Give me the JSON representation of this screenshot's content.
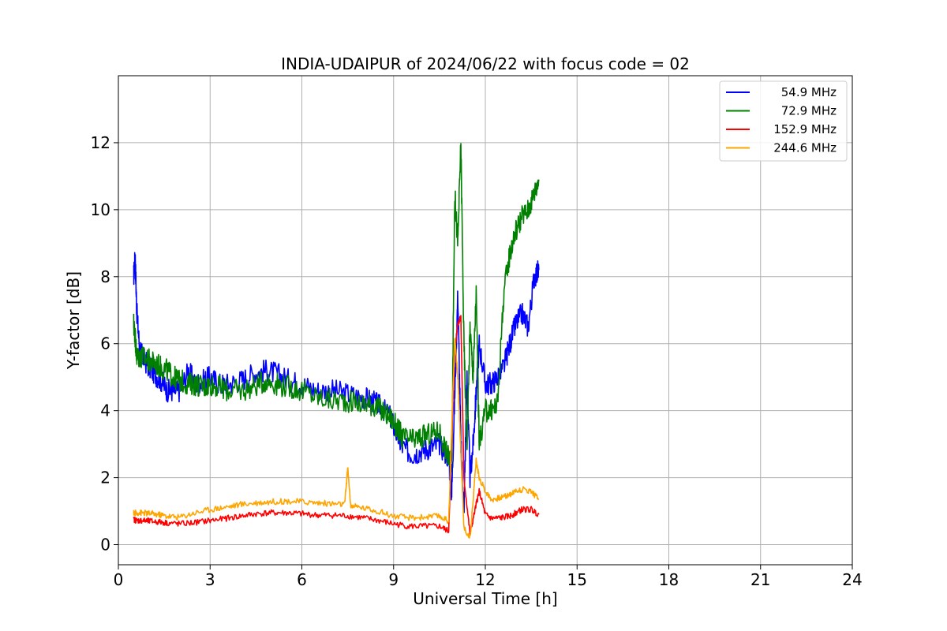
{
  "chart_data": {
    "type": "line",
    "title": "INDIA-UDAIPUR of 2024/06/22 with focus code = 02",
    "xlabel": "Universal Time [h]",
    "ylabel": "Y-factor [dB]",
    "xlim": [
      0,
      24
    ],
    "ylim": [
      -0.6,
      14
    ],
    "xticks": [
      0,
      3,
      6,
      9,
      12,
      15,
      18,
      21,
      24
    ],
    "xtick_labels": [
      "0",
      "3",
      "6",
      "9",
      "12",
      "15",
      "18",
      "21",
      "24"
    ],
    "yticks": [
      0,
      2,
      4,
      6,
      8,
      10,
      12
    ],
    "ytick_labels": [
      "0",
      "2",
      "4",
      "6",
      "8",
      "10",
      "12"
    ],
    "grid": true,
    "legend_position": "top-right",
    "series": [
      {
        "name": "54.9 MHz",
        "color": "#0000ff",
        "x": [
          0.5,
          0.55,
          0.6,
          0.7,
          0.8,
          1.0,
          1.2,
          1.4,
          1.6,
          1.8,
          2.0,
          2.3,
          2.5,
          2.8,
          3.0,
          3.3,
          3.6,
          4.0,
          4.4,
          4.8,
          5.2,
          5.6,
          6.0,
          6.5,
          7.0,
          7.5,
          8.0,
          8.3,
          8.6,
          8.9,
          9.1,
          9.3,
          9.6,
          9.9,
          10.2,
          10.5,
          10.8,
          10.9,
          11.0,
          11.1,
          11.2,
          11.3,
          11.4,
          11.5,
          11.6,
          11.7,
          11.8,
          12.0,
          12.2,
          12.4,
          12.6,
          12.8,
          13.0,
          13.2,
          13.4,
          13.6,
          13.75
        ],
        "y": [
          8.0,
          8.6,
          7.0,
          5.8,
          5.6,
          5.3,
          5.1,
          4.9,
          4.6,
          4.6,
          4.6,
          5.2,
          4.8,
          4.9,
          5.0,
          4.8,
          4.8,
          4.9,
          5.1,
          5.2,
          5.1,
          4.9,
          4.8,
          4.6,
          4.6,
          4.5,
          4.4,
          4.3,
          4.1,
          3.8,
          3.3,
          2.9,
          2.7,
          2.8,
          2.9,
          3.0,
          2.6,
          1.5,
          4.5,
          7.5,
          3.0,
          1.0,
          5.0,
          2.0,
          3.0,
          4.5,
          6.0,
          4.8,
          4.8,
          5.0,
          5.3,
          6.0,
          6.6,
          6.9,
          6.5,
          8.0,
          8.2
        ]
      },
      {
        "name": "72.9 MHz",
        "color": "#008000",
        "x": [
          0.5,
          0.55,
          0.6,
          0.7,
          0.8,
          1.0,
          1.2,
          1.4,
          1.6,
          1.8,
          2.0,
          2.3,
          2.5,
          2.8,
          3.0,
          3.3,
          3.6,
          4.0,
          4.4,
          4.8,
          5.2,
          5.6,
          6.0,
          6.5,
          7.0,
          7.5,
          8.0,
          8.3,
          8.6,
          8.9,
          9.1,
          9.3,
          9.6,
          9.9,
          10.2,
          10.5,
          10.8,
          10.9,
          11.0,
          11.1,
          11.2,
          11.3,
          11.4,
          11.5,
          11.6,
          11.7,
          11.8,
          12.0,
          12.2,
          12.4,
          12.6,
          12.8,
          13.0,
          13.2,
          13.4,
          13.6,
          13.75
        ],
        "y": [
          6.6,
          6.2,
          5.6,
          5.6,
          5.6,
          5.5,
          5.4,
          5.3,
          5.2,
          5.0,
          4.9,
          4.8,
          4.8,
          4.7,
          4.8,
          4.7,
          4.6,
          4.6,
          4.7,
          4.9,
          4.8,
          4.7,
          4.6,
          4.4,
          4.3,
          4.3,
          4.2,
          4.2,
          4.0,
          3.8,
          3.5,
          3.2,
          3.1,
          3.2,
          3.3,
          3.4,
          2.6,
          2.4,
          10.5,
          9.0,
          12.0,
          6.0,
          3.0,
          6.5,
          5.0,
          7.5,
          3.0,
          4.0,
          4.0,
          4.2,
          7.5,
          8.7,
          9.4,
          9.8,
          10.0,
          10.5,
          10.9
        ]
      },
      {
        "name": "152.9 MHz",
        "color": "#ff0000",
        "x": [
          0.5,
          0.6,
          0.8,
          1.0,
          1.3,
          1.6,
          2.0,
          2.5,
          3.0,
          3.5,
          4.0,
          4.5,
          5.0,
          5.5,
          6.0,
          6.5,
          7.0,
          7.5,
          8.0,
          8.5,
          9.0,
          9.5,
          10.0,
          10.5,
          10.8,
          11.0,
          11.1,
          11.2,
          11.3,
          11.5,
          11.7,
          11.8,
          12.0,
          12.2,
          12.5,
          12.8,
          13.0,
          13.2,
          13.5,
          13.75
        ],
        "y": [
          0.75,
          0.72,
          0.72,
          0.7,
          0.68,
          0.65,
          0.62,
          0.66,
          0.72,
          0.78,
          0.85,
          0.92,
          0.95,
          0.95,
          0.92,
          0.88,
          0.88,
          0.86,
          0.8,
          0.72,
          0.62,
          0.55,
          0.55,
          0.55,
          0.4,
          5.8,
          6.6,
          6.8,
          2.0,
          0.3,
          1.2,
          1.6,
          0.9,
          0.78,
          0.8,
          0.85,
          0.95,
          1.05,
          1.05,
          0.9
        ]
      },
      {
        "name": "244.6 MHz",
        "color": "#ffa500",
        "x": [
          0.5,
          0.6,
          0.8,
          1.0,
          1.3,
          1.6,
          2.0,
          2.5,
          3.0,
          3.5,
          4.0,
          4.5,
          5.0,
          5.5,
          6.0,
          6.5,
          7.0,
          7.4,
          7.5,
          7.6,
          8.0,
          8.5,
          9.0,
          9.5,
          10.0,
          10.5,
          10.8,
          11.0,
          11.1,
          11.2,
          11.3,
          11.5,
          11.7,
          11.8,
          12.0,
          12.2,
          12.5,
          12.8,
          13.0,
          13.2,
          13.5,
          13.75
        ],
        "y": [
          0.95,
          0.95,
          0.95,
          0.93,
          0.9,
          0.85,
          0.82,
          0.95,
          1.05,
          1.12,
          1.2,
          1.25,
          1.28,
          1.3,
          1.28,
          1.25,
          1.22,
          1.2,
          2.3,
          1.15,
          1.1,
          1.0,
          0.85,
          0.8,
          0.82,
          0.85,
          0.7,
          6.2,
          5.0,
          2.8,
          0.5,
          0.2,
          2.5,
          2.0,
          1.6,
          1.35,
          1.4,
          1.5,
          1.6,
          1.65,
          1.6,
          1.35
        ]
      }
    ]
  }
}
